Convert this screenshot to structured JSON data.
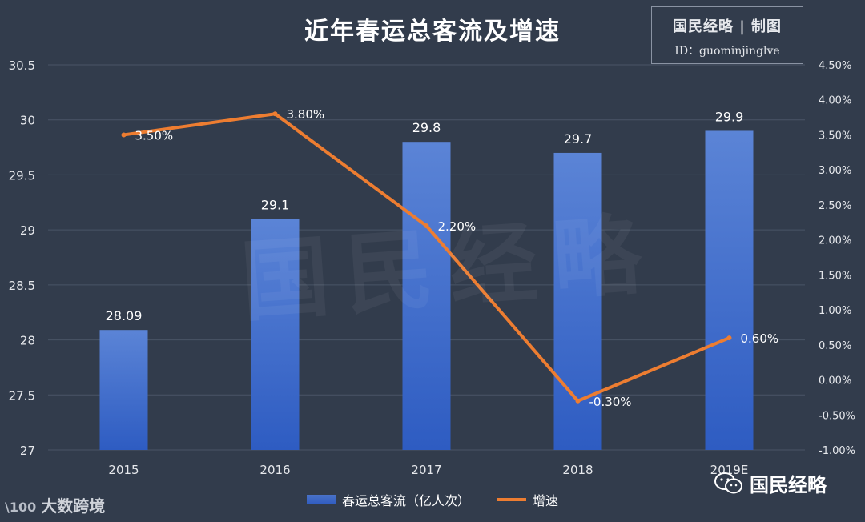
{
  "title": "近年春运总客流及增速",
  "badge": {
    "line1": "国民经略 | 制图",
    "line2": "ID：guominjinglve"
  },
  "watermark": "国民经略",
  "legend": {
    "bar_label": "春运总客流（亿人次）",
    "line_label": "增速"
  },
  "logos": {
    "left_mark": "\\100",
    "left": "大数跨境",
    "right": "国民经略"
  },
  "colors": {
    "bar_top": "#5b84d6",
    "bar_bottom": "#2e5cc2",
    "line": "#ed7d31",
    "grid": "#4a5466",
    "text": "#ffffff",
    "axis_text": "#e6e8ec"
  },
  "chart_data": {
    "type": "bar+line",
    "categories": [
      "2015",
      "2016",
      "2017",
      "2018",
      "2019E"
    ],
    "series": [
      {
        "name": "春运总客流（亿人次）",
        "type": "bar",
        "axis": "left",
        "values": [
          28.09,
          29.1,
          29.8,
          29.7,
          29.9
        ],
        "labels": [
          "28.09",
          "29.1",
          "29.8",
          "29.7",
          "29.9"
        ]
      },
      {
        "name": "增速",
        "type": "line",
        "axis": "right",
        "values": [
          3.5,
          3.8,
          2.2,
          -0.3,
          0.6
        ],
        "labels": [
          "3.50%",
          "3.80%",
          "2.20%",
          "-0.30%",
          "0.60%"
        ]
      }
    ],
    "y_left": {
      "min": 27,
      "max": 30.5,
      "step": 0.5,
      "ticks": [
        "27",
        "27.5",
        "28",
        "28.5",
        "29",
        "29.5",
        "30",
        "30.5"
      ]
    },
    "y_right": {
      "min": -1.0,
      "max": 4.5,
      "step": 0.5,
      "ticks": [
        "-1.00%",
        "-0.50%",
        "0.00%",
        "0.50%",
        "1.00%",
        "1.50%",
        "2.00%",
        "2.50%",
        "3.00%",
        "3.50%",
        "4.00%",
        "4.50%"
      ]
    },
    "grid": true,
    "legend_position": "bottom"
  }
}
